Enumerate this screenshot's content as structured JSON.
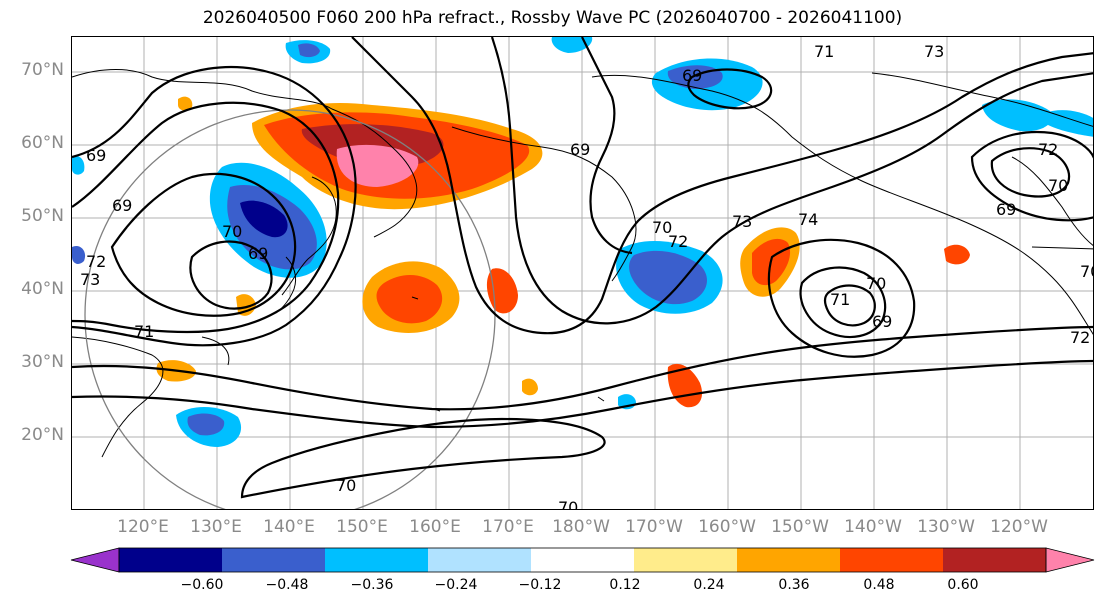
{
  "title": "2026040500 F060 200 hPa refract., Rossby Wave PC (2026040700 - 2026041100)",
  "lat_labels": [
    "70°N",
    "60°N",
    "50°N",
    "40°N",
    "30°N",
    "20°N"
  ],
  "lon_labels": [
    "120°E",
    "130°E",
    "140°E",
    "150°E",
    "160°E",
    "170°E",
    "180°W",
    "170°W",
    "160°W",
    "150°W",
    "140°W",
    "130°W",
    "120°W"
  ],
  "colorbar": {
    "colors": [
      "#9932cc",
      "#00008b",
      "#3a5fcd",
      "#00bfff",
      "#b0e2ff",
      "#ffffff",
      "#ffec8b",
      "#ffa500",
      "#ff4500",
      "#b22222",
      "#ff82ab"
    ],
    "ticks": [
      "−0.60",
      "−0.48",
      "−0.36",
      "−0.24",
      "−0.12",
      "0.12",
      "0.24",
      "0.36",
      "0.48",
      "0.60"
    ]
  },
  "contour_labels": [
    "71",
    "73",
    "69",
    "72",
    "70",
    "69",
    "70",
    "72",
    "73",
    "74",
    "71",
    "70",
    "69",
    "69",
    "69",
    "73",
    "72",
    "71",
    "70",
    "69",
    "70",
    "70",
    "72",
    "69",
    "70"
  ]
}
